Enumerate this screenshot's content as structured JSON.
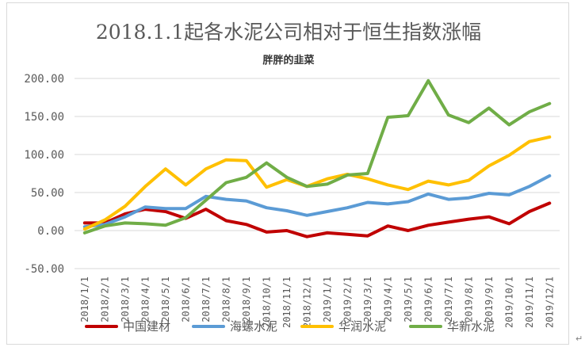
{
  "chart_data": {
    "type": "line",
    "title": "2018.1.1起各水泥公司相对于恒生指数涨幅",
    "subtitle": "胖胖的韭菜",
    "xlabel": "",
    "ylabel": "",
    "ylim": [
      -50,
      200
    ],
    "yticks": [
      -50,
      0,
      50,
      100,
      150,
      200
    ],
    "ytick_labels": [
      "-50.00",
      "0.00",
      "50.00",
      "100.00",
      "150.00",
      "200.00"
    ],
    "grid": true,
    "legend": "bottom",
    "categories": [
      "2018/1/1",
      "2018/2/1",
      "2018/3/1",
      "2018/4/1",
      "2018/5/1",
      "2018/6/1",
      "2018/7/1",
      "2018/8/1",
      "2018/9/1",
      "2018/10/1",
      "2018/11/1",
      "2018/12/1",
      "2019/1/1",
      "2019/2/1",
      "2019/3/1",
      "2019/4/1",
      "2019/5/1",
      "2019/6/1",
      "2019/7/1",
      "2019/8/1",
      "2019/9/1",
      "2019/10/1",
      "2019/11/1",
      "2019/12/1"
    ],
    "series": [
      {
        "name": "中国建材",
        "color": "#c00000",
        "values": [
          10,
          10,
          22,
          28,
          25,
          16,
          28,
          13,
          8,
          -2,
          0,
          -8,
          -3,
          -5,
          -7,
          6,
          0,
          7,
          11,
          15,
          18,
          9,
          25,
          36
        ]
      },
      {
        "name": "海螺水泥",
        "color": "#5b9bd5",
        "values": [
          5,
          8,
          18,
          31,
          29,
          29,
          45,
          41,
          39,
          30,
          26,
          20,
          25,
          30,
          37,
          35,
          38,
          48,
          41,
          43,
          49,
          47,
          58,
          72
        ]
      },
      {
        "name": "华润水泥",
        "color": "#ffc000",
        "values": [
          2,
          14,
          32,
          58,
          81,
          60,
          81,
          93,
          92,
          57,
          67,
          58,
          68,
          74,
          68,
          60,
          54,
          65,
          60,
          66,
          85,
          99,
          117,
          123
        ]
      },
      {
        "name": "华新水泥",
        "color": "#70ad47",
        "values": [
          -3,
          6,
          10,
          9,
          7,
          17,
          40,
          63,
          70,
          89,
          70,
          58,
          61,
          73,
          75,
          149,
          151,
          197,
          152,
          142,
          161,
          139,
          156,
          167
        ]
      }
    ]
  },
  "corner_mark": "↵"
}
